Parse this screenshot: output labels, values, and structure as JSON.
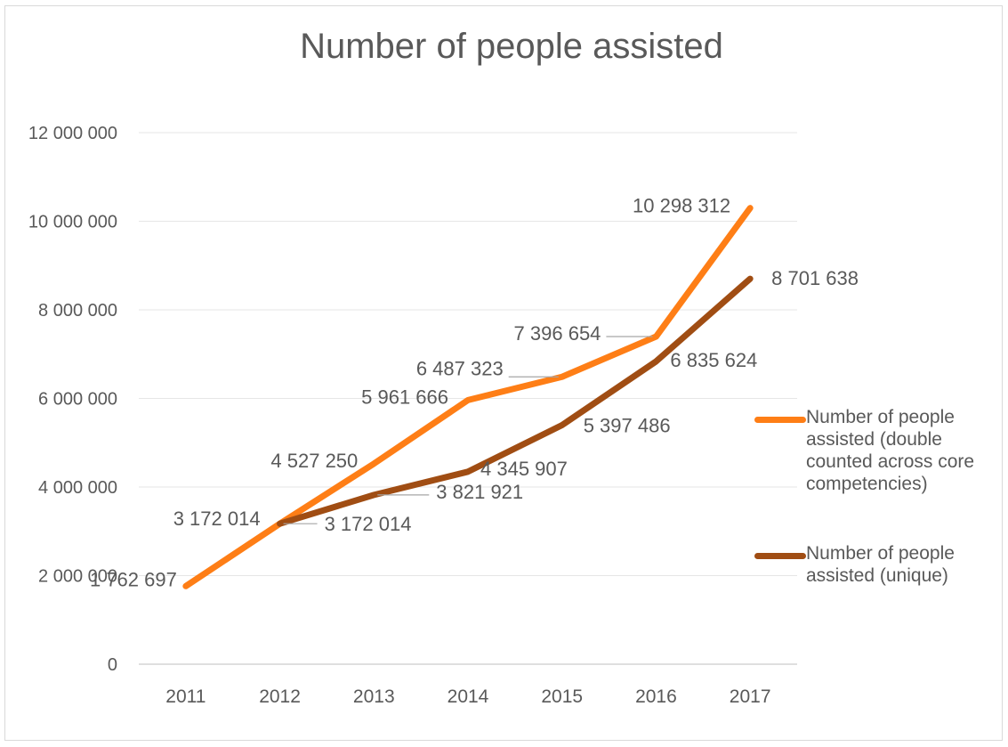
{
  "chart_data": {
    "type": "line",
    "title": "Number of people assisted",
    "categories": [
      "2011",
      "2012",
      "2013",
      "2014",
      "2015",
      "2016",
      "2017"
    ],
    "ylim": [
      0,
      12000000
    ],
    "yticks": [
      0,
      2000000,
      4000000,
      6000000,
      8000000,
      10000000,
      12000000
    ],
    "ytick_labels": [
      "0",
      "2 000 000",
      "4 000 000",
      "6 000 000",
      "8 000 000",
      "10 000 000",
      "12 000 000"
    ],
    "grid": true,
    "legend_position": "right",
    "series": [
      {
        "name": "Number of people assisted (double counted across core competencies)",
        "color": "#fe7e16",
        "values": [
          1762697,
          3172014,
          4527250,
          5961666,
          6487323,
          7396654,
          10298312
        ],
        "labels": [
          "1 762 697",
          "3 172 014",
          "4 527 250",
          "5 961 666",
          "6 487 323",
          "7 396 654",
          "10 298 312"
        ]
      },
      {
        "name": "Number of people assisted (unique)",
        "color": "#a04d13",
        "values": [
          null,
          3172014,
          3821921,
          4345907,
          5397486,
          6835624,
          8701638
        ],
        "labels": [
          null,
          "3 172 014",
          "3 821 921",
          "4 345 907",
          "5 397 486",
          "6 835 624",
          "8 701 638"
        ]
      }
    ]
  }
}
